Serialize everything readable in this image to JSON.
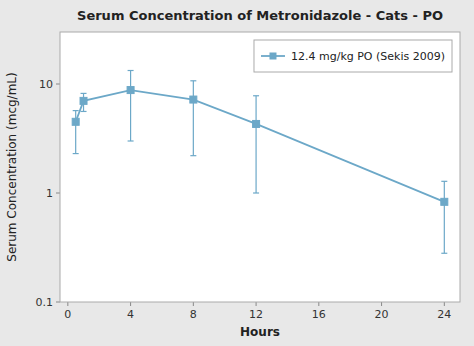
{
  "chart_data": {
    "type": "line",
    "title": "Serum Concentration of Metronidazole - Cats - PO",
    "x_label": "Hours",
    "y_label": "Serum Concentration (mcg/mL)",
    "x": [
      0.5,
      1,
      4,
      8,
      12,
      24
    ],
    "series": [
      {
        "name": "12.4 mg/kg PO (Sekis 2009)",
        "color": "#6ca8c8",
        "marker": "square",
        "line_style": "solid",
        "values": [
          4.5,
          7.0,
          8.8,
          7.2,
          4.3,
          0.83
        ],
        "yerr_low": [
          2.2,
          1.4,
          5.8,
          5.0,
          3.3,
          0.55
        ],
        "yerr_high": [
          1.2,
          1.2,
          4.5,
          3.5,
          3.5,
          0.45
        ]
      }
    ],
    "log": "y",
    "xlim": [
      -0.5,
      25
    ],
    "xticks": [
      0,
      4,
      8,
      12,
      16,
      20,
      24
    ],
    "ylim": [
      0.1,
      30
    ],
    "yticks": [
      0.1,
      1,
      10
    ],
    "grid": false,
    "legend": "upper right"
  }
}
